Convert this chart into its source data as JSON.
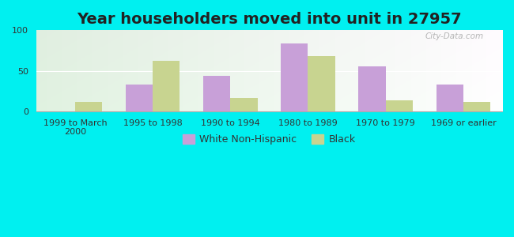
{
  "title": "Year householders moved into unit in 27957",
  "categories": [
    "1999 to March\n2000",
    "1995 to 1998",
    "1990 to 1994",
    "1980 to 1989",
    "1970 to 1979",
    "1969 or earlier"
  ],
  "white_values": [
    0,
    33,
    44,
    84,
    56,
    33
  ],
  "black_values": [
    12,
    62,
    17,
    68,
    14,
    12
  ],
  "white_color": "#c8a0d8",
  "black_color": "#c8d490",
  "ylim": [
    0,
    100
  ],
  "yticks": [
    0,
    50,
    100
  ],
  "figure_bg": "#00f0f0",
  "title_fontsize": 14,
  "tick_fontsize": 8,
  "legend_fontsize": 9,
  "bar_width": 0.35,
  "watermark": "City-Data.com"
}
